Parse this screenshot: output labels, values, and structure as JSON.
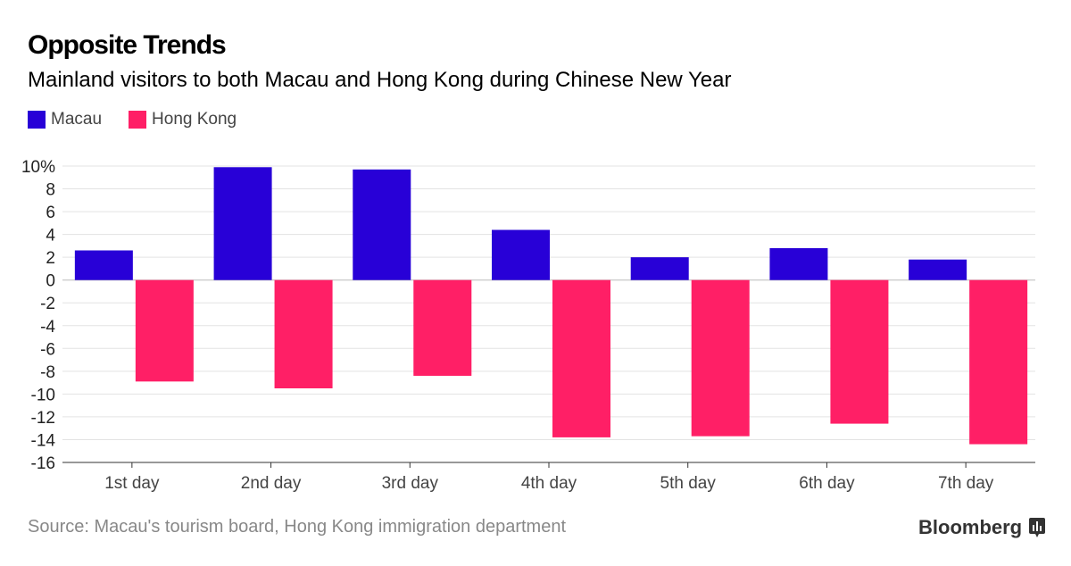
{
  "chart_data": {
    "type": "bar",
    "title": "Opposite Trends",
    "subtitle": "Mainland visitors to both Macau and Hong Kong during Chinese New Year",
    "categories": [
      "1st day",
      "2nd day",
      "3rd day",
      "4th day",
      "5th day",
      "6th day",
      "7th day"
    ],
    "series": [
      {
        "name": "Macau",
        "color": "#2800d7",
        "values": [
          2.6,
          9.9,
          9.7,
          4.4,
          2.0,
          2.8,
          1.8
        ]
      },
      {
        "name": "Hong Kong",
        "color": "#ff1f66",
        "values": [
          -8.9,
          -9.5,
          -8.4,
          -13.8,
          -13.7,
          -12.6,
          -14.4
        ]
      }
    ],
    "ylim": [
      -16,
      10
    ],
    "yticks": [
      "10%",
      "8",
      "6",
      "4",
      "2",
      "0",
      "-2",
      "-4",
      "-6",
      "-8",
      "-10",
      "-12",
      "-14",
      "-16"
    ],
    "ytick_values": [
      10,
      8,
      6,
      4,
      2,
      0,
      -2,
      -4,
      -6,
      -8,
      -10,
      -12,
      -14,
      -16
    ],
    "grid": true,
    "legend": "top-left"
  },
  "source": "Source: Macau's tourism board, Hong Kong immigration department",
  "logo": "Bloomberg"
}
